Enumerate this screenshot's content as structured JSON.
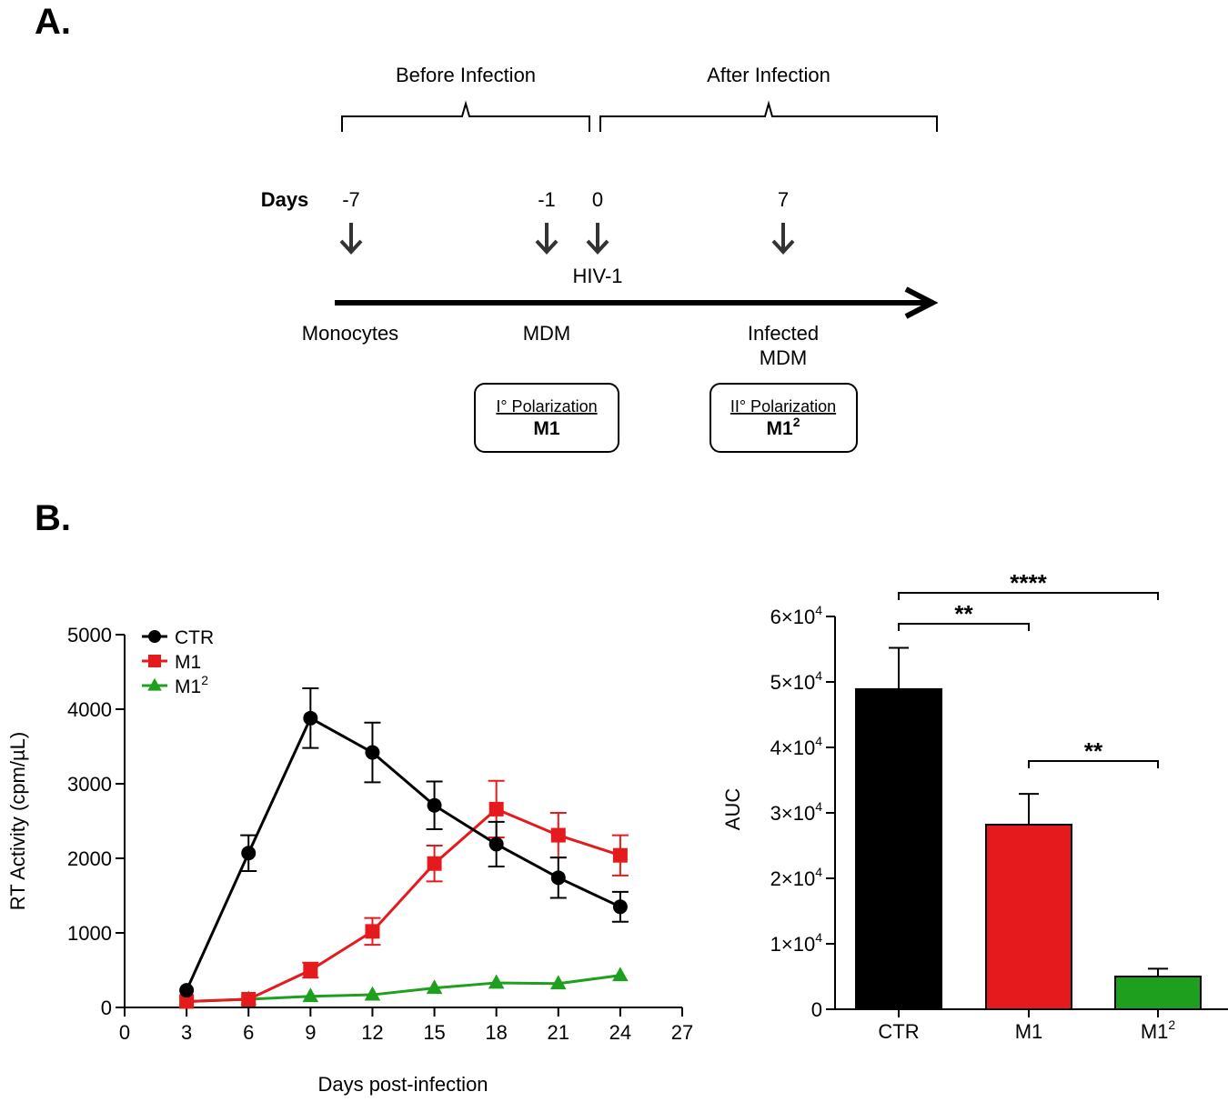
{
  "panel_a": {
    "label": "A.",
    "before_label": "Before Infection",
    "after_label": "After Infection",
    "days_label": "Days",
    "day_marks": [
      "-7",
      "-1",
      "0",
      "7"
    ],
    "virus_label": "HIV-1",
    "stage_monocytes": "Monocytes",
    "stage_mdm": "MDM",
    "stage_infected_line1": "Infected",
    "stage_infected_line2": "MDM",
    "box1_title": "I° Polarization",
    "box1_value": "M1",
    "box2_title": "II° Polarization",
    "box2_value": "M1",
    "box2_superscript": "2"
  },
  "panel_b": {
    "label": "B."
  },
  "chart_data": [
    {
      "type": "line",
      "xlabel": "Days post-infection",
      "ylabel": "RT Activity (cpm/µL)",
      "xlim": [
        0,
        27
      ],
      "ylim": [
        0,
        5000
      ],
      "xticks": [
        "0",
        "3",
        "6",
        "9",
        "12",
        "15",
        "18",
        "21",
        "24",
        "27"
      ],
      "yticks": [
        "0",
        "1000",
        "2000",
        "3000",
        "4000",
        "5000"
      ],
      "x": [
        3,
        6,
        9,
        12,
        15,
        18,
        21,
        24
      ],
      "legend_position": "top-left",
      "series": [
        {
          "name": "CTR",
          "color": "#000000",
          "marker": "circle",
          "values": [
            230,
            2070,
            3880,
            3420,
            2710,
            2190,
            1740,
            1350
          ],
          "errors": [
            0,
            240,
            400,
            400,
            320,
            300,
            270,
            200
          ]
        },
        {
          "name": "M1",
          "color": "#e41a1c",
          "marker": "square",
          "values": [
            80,
            110,
            500,
            1020,
            1930,
            2660,
            2310,
            2040
          ],
          "errors": [
            0,
            0,
            100,
            180,
            240,
            380,
            300,
            270
          ]
        },
        {
          "name": "M1",
          "name_superscript": "2",
          "color": "#1ea01e",
          "marker": "triangle",
          "values": [
            80,
            110,
            150,
            170,
            260,
            330,
            320,
            430
          ],
          "errors": [
            0,
            0,
            0,
            0,
            0,
            0,
            0,
            0
          ]
        }
      ]
    },
    {
      "type": "bar",
      "ylabel": "AUC",
      "ylim": [
        0,
        60000
      ],
      "ytick_values": [
        0,
        10000,
        20000,
        30000,
        40000,
        50000,
        60000
      ],
      "ytick_labels": [
        {
          "coef": "0",
          "exp": ""
        },
        {
          "coef": "1×10",
          "exp": "4"
        },
        {
          "coef": "2×10",
          "exp": "4"
        },
        {
          "coef": "3×10",
          "exp": "4"
        },
        {
          "coef": "4×10",
          "exp": "4"
        },
        {
          "coef": "5×10",
          "exp": "4"
        },
        {
          "coef": "6×10",
          "exp": "4"
        }
      ],
      "categories": [
        {
          "label": "CTR",
          "superscript": ""
        },
        {
          "label": "M1",
          "superscript": ""
        },
        {
          "label": "M1",
          "superscript": "2"
        }
      ],
      "values": [
        48900,
        28200,
        5000
      ],
      "errors": [
        6300,
        4700,
        1200
      ],
      "colors": [
        "#000000",
        "#e41a1c",
        "#1ea01e"
      ],
      "significance": [
        {
          "from": 0,
          "to": 1,
          "label": "**"
        },
        {
          "from": 0,
          "to": 2,
          "label": "****"
        },
        {
          "from": 1,
          "to": 2,
          "label": "**"
        }
      ]
    }
  ]
}
